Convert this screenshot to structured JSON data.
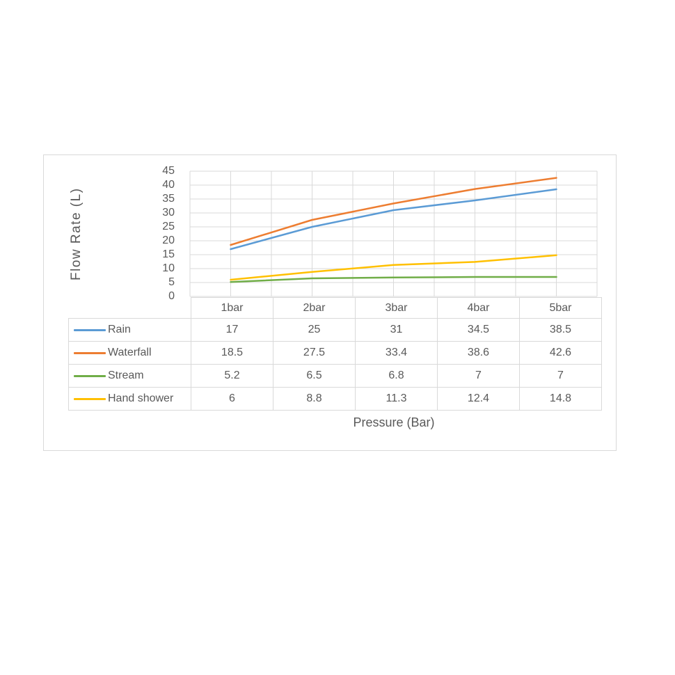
{
  "window": {
    "background": "#ffffff"
  },
  "colors": {
    "grid": "#d9d9d9",
    "table_border": "#d9d9d9",
    "container_border": "#d9d9d9",
    "text": "#595959"
  },
  "chart_data": {
    "type": "line",
    "title": "",
    "xlabel": "Pressure (Bar)",
    "ylabel": "Flow Rate (L)",
    "categories": [
      "1bar",
      "2bar",
      "3bar",
      "4bar",
      "5bar"
    ],
    "series": [
      {
        "name": "Rain",
        "color": "#5B9BD5",
        "values": [
          17,
          25,
          31,
          34.5,
          38.5
        ]
      },
      {
        "name": "Waterfall",
        "color": "#ED7D31",
        "values": [
          18.5,
          27.5,
          33.4,
          38.6,
          42.6
        ]
      },
      {
        "name": "Stream",
        "color": "#70AD47",
        "values": [
          5.2,
          6.5,
          6.8,
          7,
          7
        ]
      },
      {
        "name": "Hand shower",
        "color": "#FFC000",
        "values": [
          6,
          8.8,
          11.3,
          12.4,
          14.8
        ]
      }
    ],
    "ylim": [
      0,
      45
    ],
    "y_major_unit": 5,
    "y_tick_labels": [
      "45",
      "40",
      "35",
      "30",
      "25",
      "20",
      "15",
      "10",
      "5",
      "0"
    ],
    "grid": true,
    "legend_position": "data-table-left",
    "has_data_table": true
  }
}
